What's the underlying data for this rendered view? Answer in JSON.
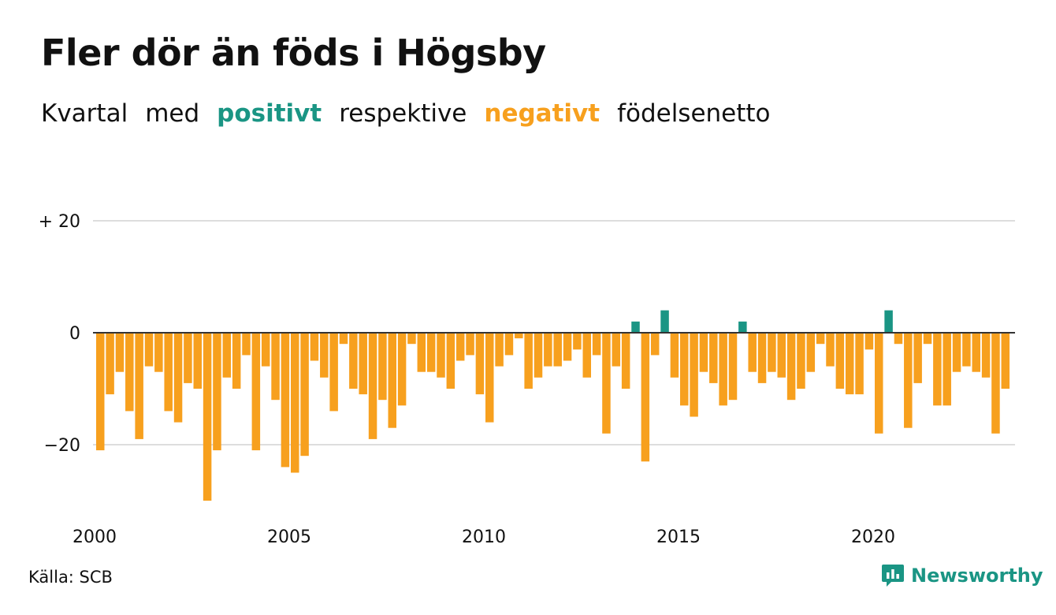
{
  "title": "Fler dör än föds i Högsby",
  "subtitle": {
    "part1": "Kvartal",
    "part2": "med",
    "positive": "positivt",
    "part3": "respektive",
    "negative": "negativt",
    "part4": "födelsenetto"
  },
  "source": "Källa: SCB",
  "brand": "Newsworthy",
  "colors": {
    "positive": "#1a9584",
    "negative": "#f7a01e",
    "grid": "#dddddd",
    "brand": "#1a9584"
  },
  "chart_data": {
    "type": "bar",
    "title": "Fler dör än föds i Högsby",
    "xlabel": "",
    "ylabel": "",
    "ylim": [
      -30,
      20
    ],
    "y_ticks": [
      {
        "value": 20,
        "label": "+ 20"
      },
      {
        "value": 0,
        "label": "0"
      },
      {
        "value": -20,
        "label": "−20"
      }
    ],
    "x_ticks": [
      {
        "year": 2000,
        "label": "2000"
      },
      {
        "year": 2005,
        "label": "2005"
      },
      {
        "year": 2010,
        "label": "2010"
      },
      {
        "year": 2015,
        "label": "2015"
      },
      {
        "year": 2020,
        "label": "2020"
      }
    ],
    "grid": true,
    "start_year": 2000,
    "periods_per_year": 4,
    "values": [
      -21,
      -11,
      -7,
      -14,
      -19,
      -6,
      -7,
      -14,
      -16,
      -9,
      -10,
      -30,
      -21,
      -8,
      -10,
      -4,
      -21,
      -6,
      -12,
      -24,
      -25,
      -22,
      -5,
      -8,
      -14,
      -2,
      -10,
      -11,
      -19,
      -12,
      -17,
      -13,
      -2,
      -7,
      -7,
      -8,
      -10,
      -5,
      -4,
      -11,
      -16,
      -6,
      -4,
      -1,
      -10,
      -8,
      -6,
      -6,
      -5,
      -3,
      -8,
      -4,
      -18,
      -6,
      -10,
      2,
      -23,
      -4,
      4,
      -8,
      -13,
      -15,
      -7,
      -9,
      -13,
      -12,
      2,
      -7,
      -9,
      -7,
      -8,
      -12,
      -10,
      -7,
      -2,
      -6,
      -10,
      -11,
      -11,
      -3,
      -18,
      4,
      -2,
      -17,
      -9,
      -2,
      -13,
      -13,
      -7,
      -6,
      -7,
      -8,
      -18,
      -10
    ]
  }
}
